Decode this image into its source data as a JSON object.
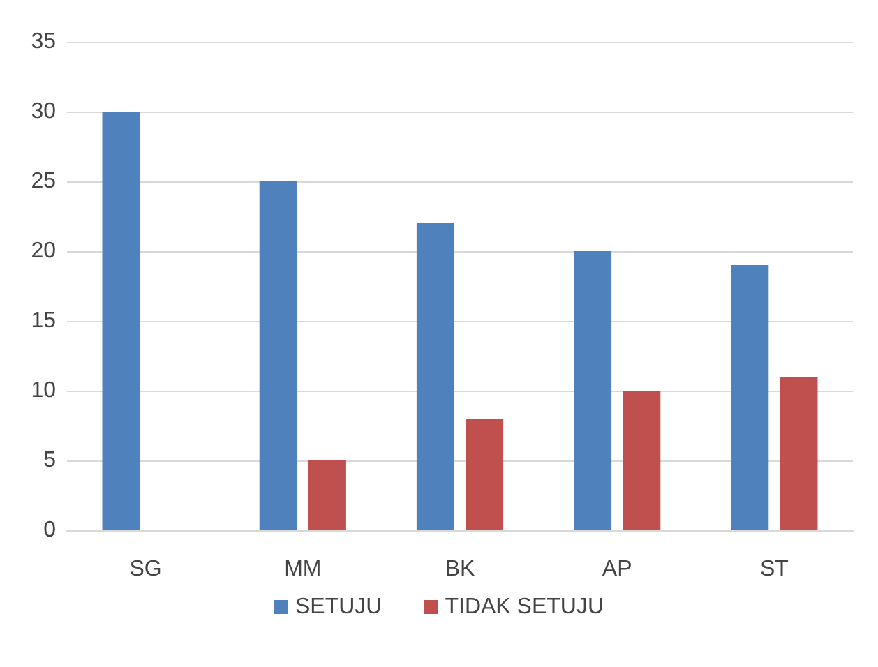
{
  "chart_data": {
    "type": "bar",
    "categories": [
      "SG",
      "MM",
      "BK",
      "AP",
      "ST"
    ],
    "series": [
      {
        "name": "SETUJU",
        "color": "#4f81bd",
        "values": [
          30,
          25,
          22,
          20,
          19
        ]
      },
      {
        "name": "TIDAK SETUJU",
        "color": "#c0504d",
        "values": [
          0,
          5,
          8,
          10,
          11
        ]
      }
    ],
    "ylim": [
      0,
      35
    ],
    "yticks": [
      0,
      5,
      10,
      15,
      20,
      25,
      30,
      35
    ],
    "grid": "y",
    "legend": "bottom"
  }
}
